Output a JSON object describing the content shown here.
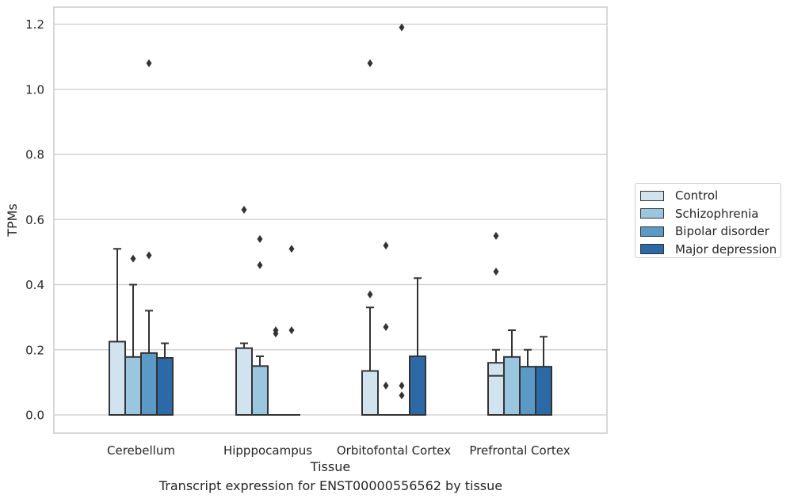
{
  "caption": "Transcript expression for ENST00000556562 by tissue",
  "chart_data": {
    "type": "box",
    "title": "",
    "xlabel": "Tissue",
    "ylabel": "TPMs",
    "ylim": [
      -0.06,
      1.25
    ],
    "yticks": [
      "0.0",
      "0.2",
      "0.4",
      "0.6",
      "0.8",
      "1.0",
      "1.2"
    ],
    "grid": "horizontal",
    "legend_position": "right",
    "categories": [
      "Cerebellum",
      "Hipppocampus",
      "Orbitofontal Cortex",
      "Prefrontal Cortex"
    ],
    "series": [
      {
        "name": "Control",
        "color": "#d2e3f0",
        "boxes": [
          {
            "min": 0,
            "q1": 0,
            "median": 0,
            "q3": 0.225,
            "max": 0.51,
            "outliers": []
          },
          {
            "min": 0,
            "q1": 0,
            "median": 0,
            "q3": 0.205,
            "max": 0.22,
            "outliers": [
              0.63
            ]
          },
          {
            "min": 0,
            "q1": 0,
            "median": 0,
            "q3": 0.135,
            "max": 0.33,
            "outliers": [
              0.37,
              1.08
            ]
          },
          {
            "min": 0,
            "q1": 0,
            "median": 0.12,
            "q3": 0.16,
            "max": 0.2,
            "outliers": [
              0.44,
              0.55
            ]
          }
        ]
      },
      {
        "name": "Schizophrenia",
        "color": "#9bc6df",
        "boxes": [
          {
            "min": 0,
            "q1": 0,
            "median": 0,
            "q3": 0.178,
            "max": 0.4,
            "outliers": [
              0.48
            ]
          },
          {
            "min": 0,
            "q1": 0,
            "median": 0,
            "q3": 0.15,
            "max": 0.18,
            "outliers": [
              0.46,
              0.54
            ]
          },
          {
            "min": 0,
            "q1": 0,
            "median": 0,
            "q3": 0,
            "max": 0,
            "outliers": [
              0.09,
              0.27,
              0.52
            ]
          },
          {
            "min": 0,
            "q1": 0,
            "median": 0,
            "q3": 0.178,
            "max": 0.26,
            "outliers": []
          }
        ]
      },
      {
        "name": "Bipolar disorder",
        "color": "#5b99c7",
        "boxes": [
          {
            "min": 0,
            "q1": 0,
            "median": 0,
            "q3": 0.19,
            "max": 0.32,
            "outliers": [
              0.49,
              1.08
            ]
          },
          {
            "min": 0,
            "q1": 0,
            "median": 0,
            "q3": 0,
            "max": 0,
            "outliers": [
              0.25,
              0.26
            ]
          },
          {
            "min": 0,
            "q1": 0,
            "median": 0,
            "q3": 0,
            "max": 0,
            "outliers": [
              0.06,
              0.09,
              1.19
            ]
          },
          {
            "min": 0,
            "q1": 0,
            "median": 0,
            "q3": 0.148,
            "max": 0.2,
            "outliers": []
          }
        ]
      },
      {
        "name": "Major depression",
        "color": "#2b6aa6",
        "boxes": [
          {
            "min": 0,
            "q1": 0,
            "median": 0,
            "q3": 0.175,
            "max": 0.22,
            "outliers": []
          },
          {
            "min": 0,
            "q1": 0,
            "median": 0,
            "q3": 0,
            "max": 0,
            "outliers": [
              0.26,
              0.51
            ]
          },
          {
            "min": 0,
            "q1": 0,
            "median": 0,
            "q3": 0.18,
            "max": 0.42,
            "outliers": []
          },
          {
            "min": 0,
            "q1": 0,
            "median": 0,
            "q3": 0.148,
            "max": 0.24,
            "outliers": []
          }
        ]
      }
    ]
  }
}
